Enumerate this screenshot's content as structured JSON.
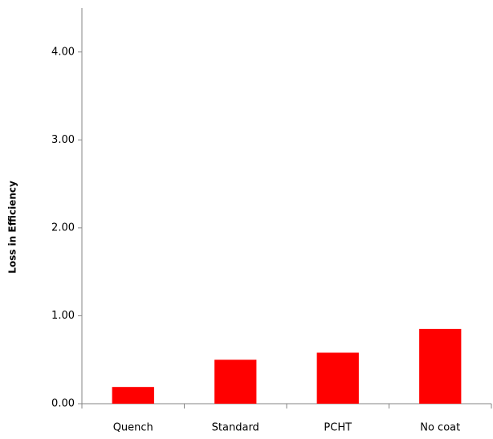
{
  "chart_data": {
    "type": "bar",
    "y_label": "Loss in Efficiency",
    "categories": [
      "Quench",
      "Standard",
      "PCHT",
      "No coat"
    ],
    "values": [
      0.19,
      0.5,
      0.58,
      0.85
    ],
    "color": "#ff0000",
    "ylim": [
      0,
      4.5
    ],
    "yticks": [
      {
        "value": 0,
        "label": "0.00"
      },
      {
        "value": 1,
        "label": "1.00"
      },
      {
        "value": 2,
        "label": "2.00"
      },
      {
        "value": 3,
        "label": "3.00"
      },
      {
        "value": 4,
        "label": "4.00"
      }
    ],
    "grid": false
  }
}
